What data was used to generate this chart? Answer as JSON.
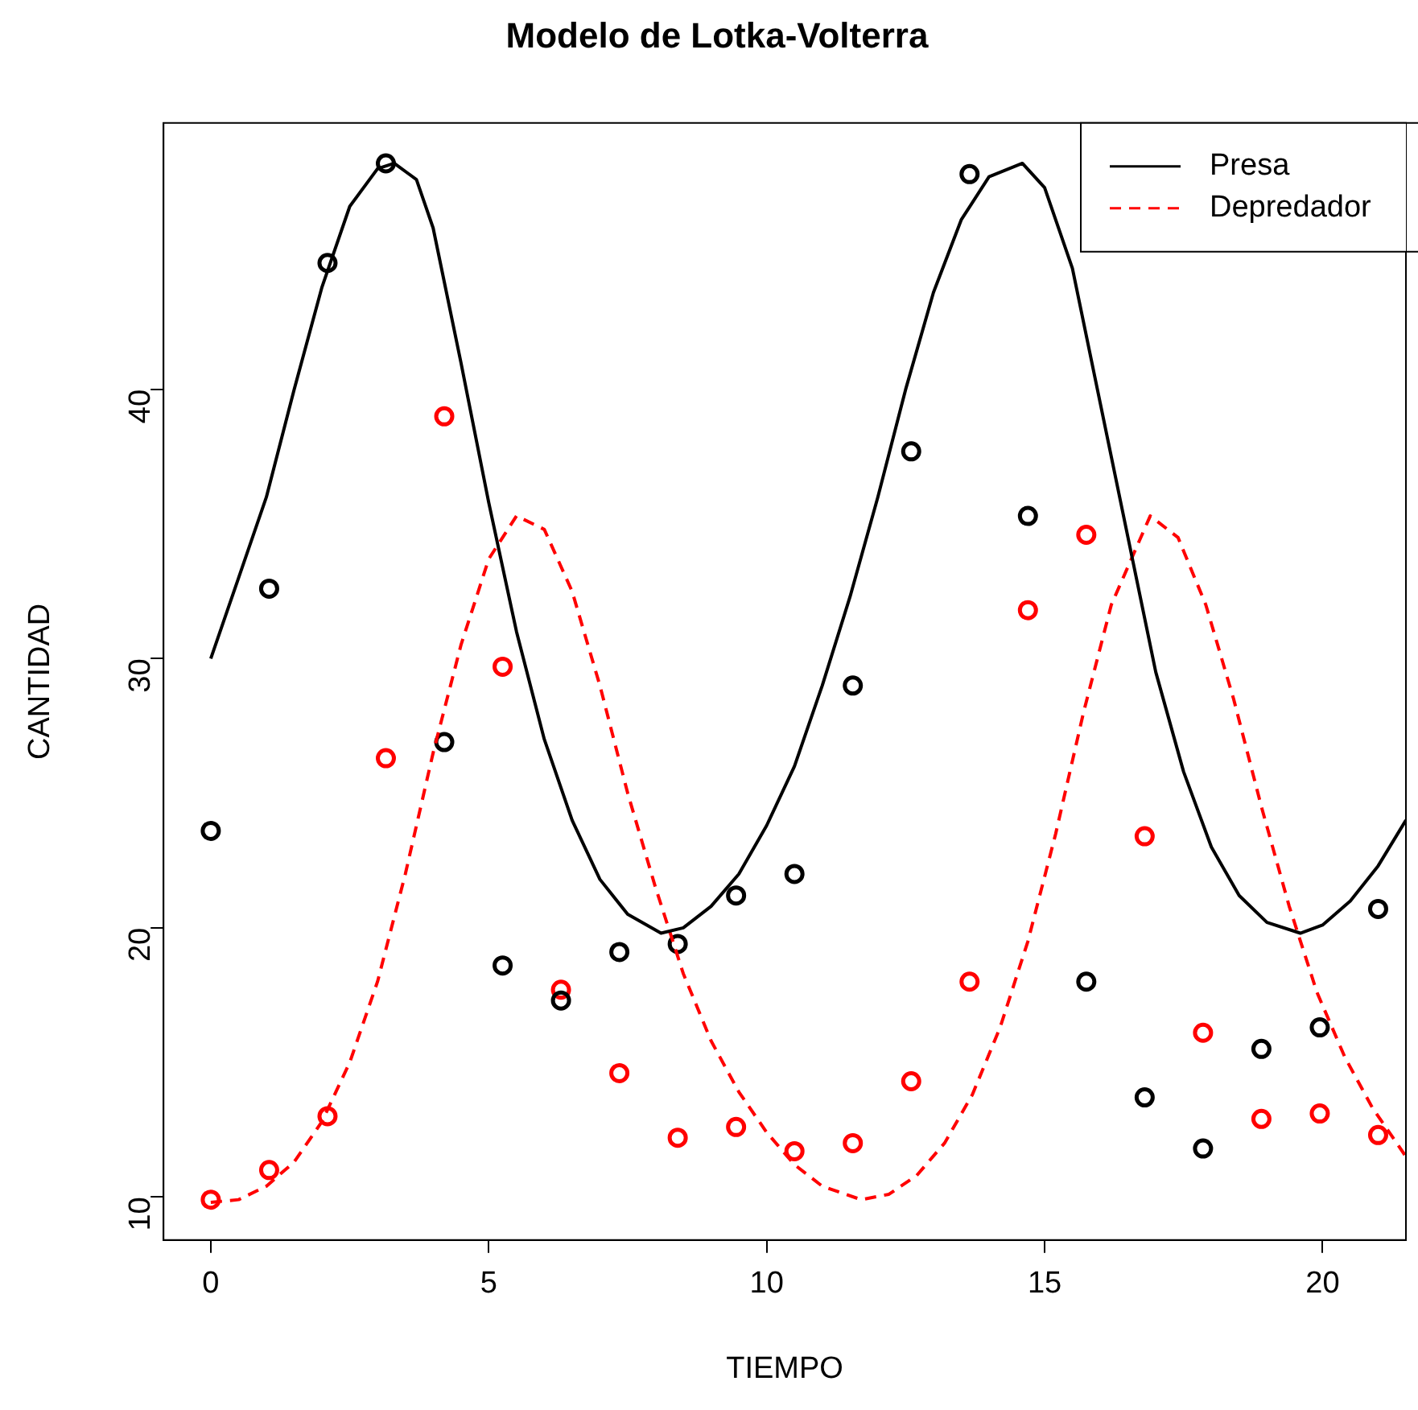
{
  "chart_data": {
    "type": "scatter",
    "title": "Modelo de Lotka-Volterra",
    "xlabel": "TIEMPO",
    "ylabel": "CANTIDAD",
    "xlim": [
      -0.85,
      21.5
    ],
    "xticks": [
      0,
      5,
      10,
      15,
      20
    ],
    "ylim": [
      8.4,
      49.9
    ],
    "yticks": [
      10,
      20,
      30,
      40
    ],
    "grid": false,
    "legend": "top right",
    "marker": "circle",
    "series": [
      {
        "name": "Presa",
        "type": "line",
        "line_style": "solid",
        "marker": "none",
        "color": "#000000",
        "x": [
          0,
          0.5,
          1,
          1.5,
          2,
          2.5,
          3,
          3.3,
          3.7,
          4,
          4.5,
          5,
          5.5,
          6,
          6.5,
          7,
          7.5,
          8.1,
          8.5,
          9,
          9.5,
          10,
          10.5,
          11,
          11.5,
          12,
          12.5,
          13,
          13.5,
          14,
          14.6,
          15,
          15.5,
          16,
          16.5,
          17,
          17.5,
          18,
          18.5,
          19,
          19.6,
          20,
          20.5,
          21,
          21.5
        ],
        "values": [
          30,
          33,
          36,
          40,
          43.8,
          46.8,
          48.2,
          48.4,
          47.8,
          46,
          41,
          35.8,
          31,
          27,
          24,
          21.8,
          20.5,
          19.8,
          20,
          20.8,
          22,
          23.8,
          26,
          29,
          32.3,
          36,
          40,
          43.6,
          46.3,
          47.9,
          48.4,
          47.5,
          44.5,
          39.5,
          34.5,
          29.5,
          25.8,
          23,
          21.2,
          20.2,
          19.8,
          20.1,
          21,
          22.3,
          24
        ]
      },
      {
        "name": "Depredador",
        "type": "line",
        "line_style": "dashed",
        "marker": "none",
        "color": "#ff0000",
        "x": [
          0,
          0.5,
          1,
          1.5,
          2,
          2.5,
          3,
          3.5,
          4,
          4.5,
          5,
          5.5,
          6,
          6.5,
          7,
          7.5,
          8,
          8.5,
          9,
          9.5,
          10,
          10.5,
          11,
          11.7,
          12.2,
          12.7,
          13.2,
          13.7,
          14.2,
          14.7,
          15.2,
          15.7,
          16.2,
          16.9,
          17.4,
          17.9,
          18.4,
          18.9,
          19.4,
          19.9,
          20.4,
          20.9,
          21.5
        ],
        "values": [
          9.8,
          9.9,
          10.4,
          11.3,
          12.8,
          15,
          18,
          22,
          26.5,
          30.5,
          33.7,
          35.3,
          34.8,
          32.5,
          29,
          25,
          21.5,
          18.3,
          15.8,
          13.9,
          12.4,
          11.2,
          10.4,
          9.9,
          10.1,
          10.8,
          12,
          13.8,
          16.3,
          19.5,
          23.5,
          28,
          32,
          35.3,
          34.5,
          32,
          28.5,
          24.5,
          20.8,
          17.6,
          15.2,
          13.3,
          11.5
        ]
      },
      {
        "color": "#000000",
        "x": [
          0,
          1.05,
          2.1,
          3.15,
          4.2,
          5.25,
          6.3,
          7.35,
          8.4,
          9.45,
          10.5,
          11.55,
          12.6,
          13.65,
          14.7,
          15.75,
          16.8,
          17.85,
          18.9,
          19.95,
          21
        ],
        "values": [
          23.6,
          32.6,
          44.7,
          48.4,
          26.9,
          18.6,
          17.3,
          19.1,
          19.4,
          21.2,
          22,
          29,
          37.7,
          48,
          35.3,
          18,
          13.7,
          11.8,
          15.5,
          16.3,
          20.7
        ]
      },
      {
        "color": "#ff0000",
        "x": [
          0,
          1.05,
          2.1,
          3.15,
          4.2,
          5.25,
          6.3,
          7.35,
          8.4,
          9.45,
          10.5,
          11.55,
          12.6,
          13.65,
          14.7,
          15.75,
          16.8,
          17.85,
          18.9,
          19.95,
          21
        ],
        "values": [
          9.9,
          11,
          13,
          26.3,
          39,
          29.7,
          17.7,
          14.6,
          12.2,
          12.6,
          11.7,
          12,
          14.3,
          18,
          31.8,
          34.6,
          23.4,
          16.1,
          12.9,
          13.1,
          12.3
        ]
      }
    ]
  }
}
